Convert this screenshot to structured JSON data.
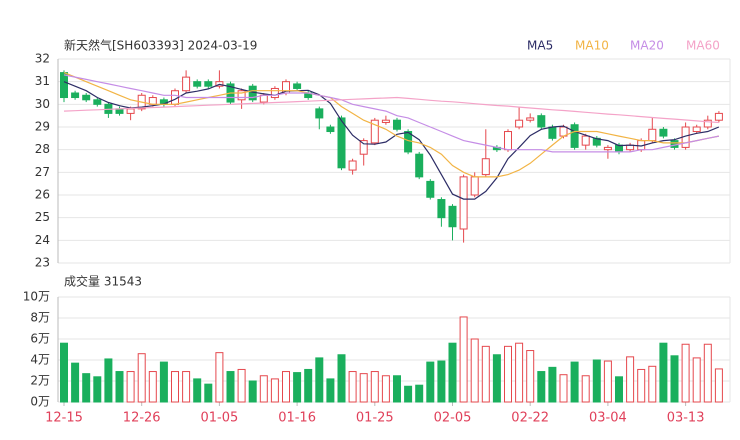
{
  "chart_data": {
    "type": "candlestick",
    "title": "新天然气[SH603393] 2024-03-19",
    "categories": [
      "12-15",
      null,
      null,
      null,
      null,
      null,
      null,
      "12-26",
      null,
      null,
      null,
      null,
      null,
      null,
      "01-05",
      null,
      null,
      null,
      null,
      null,
      null,
      "01-16",
      null,
      null,
      null,
      null,
      null,
      null,
      "01-25",
      null,
      null,
      null,
      null,
      null,
      null,
      "02-05",
      null,
      null,
      null,
      null,
      null,
      null,
      "02-22",
      null,
      null,
      null,
      null,
      null,
      null,
      "03-04",
      null,
      null,
      null,
      null,
      null,
      null,
      "03-13",
      null,
      null,
      null
    ],
    "open": [
      31.4,
      30.5,
      30.4,
      30.2,
      30.0,
      29.8,
      29.6,
      29.8,
      30.0,
      30.2,
      30.0,
      30.6,
      31.0,
      31.0,
      30.8,
      30.9,
      30.2,
      30.8,
      30.1,
      30.3,
      30.5,
      30.9,
      30.5,
      29.8,
      29.0,
      29.4,
      27.1,
      27.8,
      28.3,
      29.2,
      29.3,
      28.8,
      27.8,
      26.6,
      25.8,
      25.5,
      24.5,
      26.0,
      26.9,
      28.1,
      28.0,
      29.0,
      29.3,
      29.5,
      29.0,
      28.6,
      29.1,
      28.2,
      28.5,
      28.0,
      28.2,
      28.0,
      28.0,
      28.4,
      28.9,
      28.4,
      28.1,
      28.8,
      29.0,
      29.3
    ],
    "high": [
      31.5,
      30.6,
      30.5,
      30.3,
      30.1,
      29.9,
      29.9,
      30.5,
      30.4,
      30.3,
      30.7,
      31.5,
      31.1,
      31.1,
      31.5,
      31.0,
      30.7,
      30.9,
      30.5,
      30.8,
      31.1,
      31.0,
      30.6,
      29.9,
      29.1,
      29.5,
      27.6,
      28.5,
      29.4,
      29.5,
      29.4,
      28.9,
      27.9,
      26.7,
      25.9,
      25.6,
      26.9,
      27.0,
      28.9,
      28.2,
      28.9,
      29.9,
      29.6,
      29.6,
      29.1,
      29.1,
      29.2,
      28.7,
      28.6,
      28.2,
      28.3,
      28.3,
      28.5,
      29.4,
      29.0,
      28.5,
      29.2,
      29.1,
      29.5,
      29.7
    ],
    "low": [
      30.1,
      30.2,
      30.1,
      29.9,
      29.4,
      29.5,
      29.3,
      29.7,
      29.9,
      29.9,
      29.9,
      30.5,
      30.7,
      30.7,
      30.7,
      30.0,
      29.8,
      30.1,
      30.0,
      30.2,
      30.4,
      30.6,
      30.2,
      28.9,
      28.7,
      27.1,
      26.9,
      27.3,
      28.2,
      29.1,
      28.8,
      27.8,
      26.7,
      25.8,
      24.6,
      24.0,
      23.9,
      25.9,
      26.8,
      27.9,
      27.9,
      28.9,
      29.2,
      28.9,
      28.4,
      28.5,
      28.0,
      28.0,
      28.1,
      27.6,
      27.8,
      27.9,
      27.9,
      28.3,
      28.5,
      28.0,
      28.0,
      28.7,
      28.9,
      29.2
    ],
    "close": [
      30.3,
      30.3,
      30.2,
      30.0,
      29.6,
      29.6,
      29.8,
      30.4,
      30.3,
      30.0,
      30.6,
      31.2,
      30.8,
      30.8,
      31.0,
      30.1,
      30.6,
      30.2,
      30.4,
      30.7,
      31.0,
      30.7,
      30.3,
      29.4,
      28.8,
      27.2,
      27.5,
      28.4,
      29.3,
      29.3,
      28.9,
      27.9,
      26.8,
      25.9,
      25.0,
      24.6,
      26.8,
      26.8,
      27.6,
      28.0,
      28.8,
      29.3,
      29.4,
      29.0,
      28.5,
      29.0,
      28.1,
      28.6,
      28.2,
      28.1,
      27.9,
      28.2,
      28.4,
      28.9,
      28.6,
      28.1,
      29.0,
      29.0,
      29.3,
      29.6
    ],
    "up_color": "#e5484d",
    "down_color": "#1aaf5d",
    "ylim": [
      23,
      32
    ],
    "yticks": [
      23,
      24,
      25,
      26,
      27,
      28,
      29,
      30,
      31,
      32
    ],
    "grid": true,
    "ma": [
      {
        "name": "MA5",
        "color": "#2d2d66",
        "values": [
          31.0,
          30.8,
          30.6,
          30.3,
          30.08,
          29.94,
          29.84,
          29.88,
          29.94,
          30.02,
          30.22,
          30.5,
          30.58,
          30.68,
          30.88,
          30.78,
          30.66,
          30.54,
          30.46,
          30.4,
          30.58,
          30.6,
          30.62,
          30.42,
          30.04,
          29.28,
          28.64,
          28.26,
          28.24,
          28.34,
          28.68,
          28.76,
          28.44,
          27.76,
          26.9,
          26.04,
          25.82,
          25.82,
          26.16,
          26.76,
          27.6,
          28.1,
          28.62,
          28.9,
          29.0,
          29.04,
          28.8,
          28.64,
          28.48,
          28.4,
          28.18,
          28.2,
          28.16,
          28.3,
          28.4,
          28.44,
          28.6,
          28.72,
          28.8,
          29.0
        ]
      },
      {
        "name": "MA10",
        "color": "#f2b445",
        "values": [
          31.4,
          31.2,
          31.0,
          30.8,
          30.6,
          30.4,
          30.2,
          30.1,
          30.0,
          30.0,
          30.0,
          30.1,
          30.2,
          30.3,
          30.4,
          30.5,
          30.5,
          30.6,
          30.6,
          30.6,
          30.6,
          30.6,
          30.5,
          30.4,
          30.3,
          29.9,
          29.6,
          29.3,
          29.1,
          28.9,
          28.6,
          28.4,
          28.3,
          28.1,
          27.8,
          27.3,
          27.0,
          26.8,
          26.8,
          26.8,
          26.9,
          27.1,
          27.4,
          27.8,
          28.2,
          28.6,
          28.8,
          28.8,
          28.8,
          28.7,
          28.6,
          28.5,
          28.4,
          28.4,
          28.3,
          28.3,
          28.3,
          28.4,
          28.5,
          28.6
        ]
      },
      {
        "name": "MA20",
        "color": "#c58de6",
        "values": [
          31.3,
          31.2,
          31.1,
          31.0,
          30.9,
          30.8,
          30.7,
          30.6,
          30.5,
          30.4,
          30.4,
          30.3,
          30.3,
          30.3,
          30.3,
          30.3,
          30.3,
          30.3,
          30.4,
          30.4,
          30.5,
          30.5,
          30.5,
          30.4,
          30.3,
          30.2,
          30.0,
          29.9,
          29.8,
          29.7,
          29.5,
          29.4,
          29.2,
          29.0,
          28.8,
          28.6,
          28.4,
          28.3,
          28.2,
          28.1,
          28.0,
          28.0,
          28.0,
          28.0,
          27.9,
          27.9,
          27.9,
          27.9,
          27.9,
          27.9,
          27.9,
          27.9,
          28.0,
          28.0,
          28.1,
          28.2,
          28.3,
          28.4,
          28.5,
          28.6
        ]
      },
      {
        "name": "MA60",
        "color": "#f4a3c8",
        "values": [
          29.7,
          29.72,
          29.74,
          29.76,
          29.78,
          29.8,
          29.82,
          29.84,
          29.86,
          29.88,
          29.9,
          29.92,
          29.94,
          29.96,
          29.98,
          30.0,
          30.02,
          30.04,
          30.06,
          30.08,
          30.1,
          30.12,
          30.14,
          30.16,
          30.18,
          30.2,
          30.22,
          30.24,
          30.26,
          30.28,
          30.3,
          30.26,
          30.22,
          30.18,
          30.14,
          30.11,
          30.07,
          30.03,
          29.99,
          29.95,
          29.92,
          29.88,
          29.84,
          29.8,
          29.76,
          29.73,
          29.69,
          29.65,
          29.61,
          29.57,
          29.54,
          29.5,
          29.46,
          29.42,
          29.38,
          29.35,
          29.31,
          29.27,
          29.23,
          29.2
        ]
      }
    ],
    "volume": {
      "title": "成交量 31543",
      "values": [
        5.6,
        3.7,
        2.7,
        2.4,
        4.1,
        2.9,
        2.9,
        4.6,
        2.9,
        3.8,
        2.9,
        2.9,
        2.2,
        1.7,
        4.7,
        2.9,
        3.1,
        2.0,
        2.5,
        2.2,
        2.9,
        2.8,
        3.1,
        4.2,
        2.2,
        4.5,
        2.9,
        2.7,
        2.9,
        2.5,
        2.5,
        1.5,
        1.6,
        3.8,
        3.9,
        5.6,
        8.1,
        6.0,
        5.3,
        4.5,
        5.3,
        5.6,
        4.9,
        2.9,
        3.3,
        2.6,
        3.8,
        2.5,
        4.0,
        3.9,
        2.4,
        4.3,
        3.1,
        3.4,
        5.6,
        4.4,
        5.5,
        4.2,
        5.5,
        3.15
      ],
      "ylim": [
        0,
        10
      ],
      "yticks": [
        {
          "value": 0,
          "label": "0万"
        },
        {
          "value": 2,
          "label": "2万"
        },
        {
          "value": 4,
          "label": "4万"
        },
        {
          "value": 6,
          "label": "6万"
        },
        {
          "value": 8,
          "label": "8万"
        },
        {
          "value": 10,
          "label": "10万"
        }
      ]
    }
  }
}
